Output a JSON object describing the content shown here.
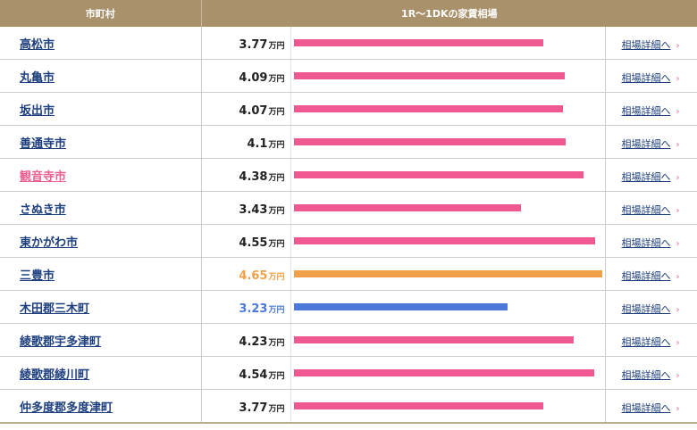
{
  "header": {
    "col_city": "市町村",
    "col_rent": "1R〜1DKの家賃相場"
  },
  "colors": {
    "bar_default": "#ef5890",
    "bar_max": "#f0a048",
    "bar_min": "#4a79d9",
    "highlight_text": "#ee5f8e",
    "header_bg": "#a8916b"
  },
  "scale_max": 4.65,
  "unit": "万円",
  "detail_label": "相場詳細へ",
  "rows": [
    {
      "name": "高松市",
      "value": "3.77",
      "amount": 3.77,
      "style": ""
    },
    {
      "name": "丸亀市",
      "value": "4.09",
      "amount": 4.09,
      "style": ""
    },
    {
      "name": "坂出市",
      "value": "4.07",
      "amount": 4.07,
      "style": ""
    },
    {
      "name": "善通寺市",
      "value": "4.1",
      "amount": 4.1,
      "style": ""
    },
    {
      "name": "観音寺市",
      "value": "4.38",
      "amount": 4.38,
      "style": "current"
    },
    {
      "name": "さぬき市",
      "value": "3.43",
      "amount": 3.43,
      "style": ""
    },
    {
      "name": "東かがわ市",
      "value": "4.55",
      "amount": 4.55,
      "style": ""
    },
    {
      "name": "三豊市",
      "value": "4.65",
      "amount": 4.65,
      "style": "max"
    },
    {
      "name": "木田郡三木町",
      "value": "3.23",
      "amount": 3.23,
      "style": "min"
    },
    {
      "name": "綾歌郡宇多津町",
      "value": "4.23",
      "amount": 4.23,
      "style": ""
    },
    {
      "name": "綾歌郡綾川町",
      "value": "4.54",
      "amount": 4.54,
      "style": ""
    },
    {
      "name": "仲多度郡多度津町",
      "value": "3.77",
      "amount": 3.77,
      "style": ""
    }
  ]
}
